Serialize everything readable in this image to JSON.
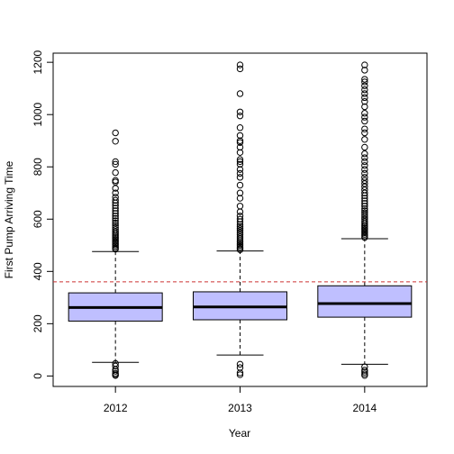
{
  "chart_data": {
    "type": "boxplot",
    "title": "",
    "xlabel": "Year",
    "ylabel": "First Pump Arriving Time",
    "ylim": [
      -40,
      1235
    ],
    "yticks": [
      0,
      200,
      400,
      600,
      800,
      1000,
      1200
    ],
    "categories": [
      "2012",
      "2013",
      "2014"
    ],
    "box_color": "#bfbfff",
    "reference_line": {
      "value": 360,
      "color": "#cc3333",
      "style": "dashed"
    },
    "boxes": [
      {
        "category": "2012",
        "whisker_low": 52,
        "q1": 210,
        "median": 262,
        "q3": 318,
        "whisker_high": 476,
        "outliers": [
          2,
          5,
          10,
          18,
          25,
          38,
          48,
          485,
          490,
          496,
          502,
          508,
          514,
          520,
          526,
          532,
          538,
          545,
          552,
          560,
          568,
          576,
          585,
          594,
          603,
          612,
          622,
          632,
          642,
          652,
          662,
          672,
          684,
          700,
          718,
          742,
          748,
          778,
          810,
          820,
          898,
          930
        ]
      },
      {
        "category": "2013",
        "whisker_low": 80,
        "q1": 215,
        "median": 264,
        "q3": 322,
        "whisker_high": 478,
        "outliers": [
          5,
          12,
          32,
          45,
          483,
          488,
          494,
          500,
          506,
          512,
          518,
          525,
          532,
          540,
          548,
          556,
          564,
          572,
          580,
          590,
          600,
          612,
          628,
          650,
          680,
          700,
          730,
          760,
          775,
          790,
          810,
          820,
          828,
          855,
          875,
          893,
          900,
          920,
          950,
          995,
          1010,
          1080,
          1175,
          1190
        ]
      },
      {
        "category": "2014",
        "whisker_low": 45,
        "q1": 225,
        "median": 277,
        "q3": 345,
        "whisker_high": 525,
        "outliers": [
          2,
          8,
          15,
          22,
          35,
          530,
          536,
          542,
          548,
          554,
          560,
          566,
          572,
          578,
          585,
          592,
          600,
          608,
          616,
          624,
          632,
          640,
          650,
          660,
          670,
          680,
          690,
          700,
          712,
          724,
          736,
          748,
          760,
          775,
          790,
          805,
          820,
          835,
          850,
          875,
          905,
          930,
          945,
          975,
          990,
          1005,
          1030,
          1050,
          1065,
          1080,
          1095,
          1110,
          1125,
          1135,
          1170,
          1190
        ]
      }
    ]
  }
}
